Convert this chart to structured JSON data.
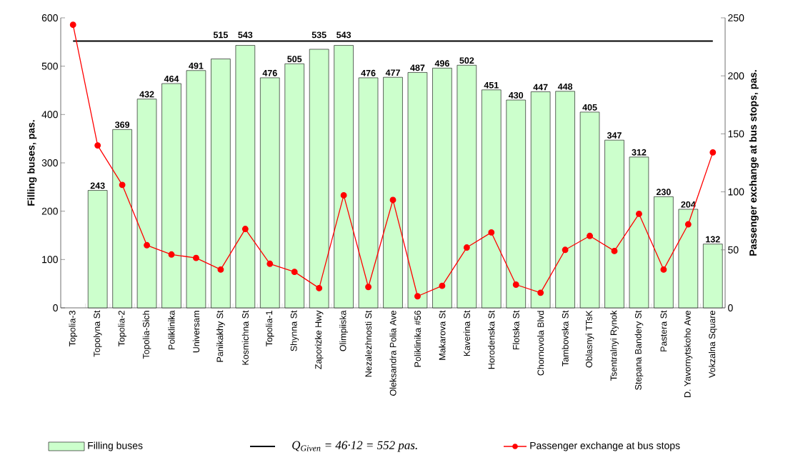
{
  "chart_data": {
    "type": "bar",
    "ylabel": "Filling buses, pas.",
    "y2label": "Passenger exchange at bus stops, pas.",
    "categories": [
      "Topolia-3",
      "Topolyna St",
      "Topolia-2",
      "Topolia-Sich",
      "Poliklinika",
      "Universam",
      "Panikakhy St",
      "Kosmichna St",
      "Topolia-1",
      "Shynna St",
      "Zaporizke Hwy",
      "Olimpiiska",
      "Nezalezhnosti St",
      "Oleksandra Polia Ave",
      "Poliklinika #56",
      "Makarova St",
      "Kaverina St",
      "Horodenska St",
      "Flotska St",
      "Chornovola Blvd",
      "Tambovska St",
      "Oblasnyi TTsK",
      "Tsentralnyi Rynok",
      "Stepana Bandery St",
      "Pastera St",
      "D. Yavornytskoho Ave",
      "Vokzalna Square"
    ],
    "ylim": [
      0,
      600
    ],
    "yticks": [
      0,
      100,
      200,
      300,
      400,
      500,
      600
    ],
    "y2lim": [
      0,
      250
    ],
    "y2ticks": [
      0,
      50,
      100,
      150,
      200,
      250
    ],
    "series": [
      {
        "name": "Filling buses",
        "color": "#ccffcc",
        "values": [
          null,
          243,
          369,
          432,
          464,
          491,
          515,
          543,
          476,
          505,
          535,
          543,
          476,
          477,
          487,
          496,
          502,
          451,
          430,
          447,
          448,
          405,
          347,
          312,
          230,
          204,
          132
        ],
        "value_labels": [
          null,
          "243",
          "369",
          "432",
          "464",
          "491",
          "515",
          "543",
          "476",
          "505",
          "535",
          "543",
          "476",
          "477",
          "487",
          "496",
          "502",
          "451",
          "430",
          "447",
          "448",
          "405",
          "347",
          "312",
          "230",
          "204",
          "132"
        ]
      },
      {
        "name": "Passenger exchange at bus stops",
        "type": "line",
        "axis": "y2",
        "color": "#ff0000",
        "marker": "circle",
        "values": [
          244,
          140,
          106,
          54,
          46,
          43,
          33,
          68,
          38,
          31,
          17,
          97,
          18,
          93,
          10,
          19,
          52,
          65,
          20,
          13,
          50,
          62,
          49,
          81,
          33,
          72,
          134
        ]
      }
    ],
    "ref_lines": [
      {
        "axis": "y",
        "value": 552,
        "label": "Q$_{Given}$ = 46·12 = 552 pas.",
        "color": "#000000"
      }
    ],
    "legend": "bottom"
  }
}
